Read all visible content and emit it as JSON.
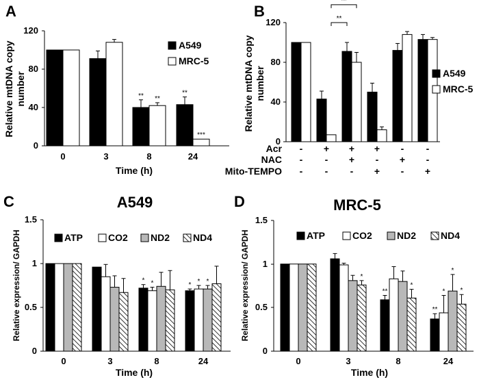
{
  "colors": {
    "black": "#000000",
    "white": "#ffffff",
    "gray": "#b8b8b8"
  },
  "icons": {
    "hatch": "diagonal-hatch-pattern"
  },
  "chart_data": [
    {
      "panel": "A",
      "type": "bar",
      "title": "",
      "xlabel": "Time (h)",
      "ylabel": "Relative mtDNA copy number",
      "ylabel_lines": [
        "Relative mtDNA copy",
        "number"
      ],
      "ylim": [
        0,
        120
      ],
      "yticks": [
        "0",
        "40",
        "80",
        "120"
      ],
      "categories": [
        "0",
        "3",
        "8",
        "24"
      ],
      "series": [
        {
          "name": "A549",
          "fill": "black",
          "values": [
            100,
            91,
            40,
            43
          ],
          "errors": [
            0,
            8,
            8,
            8
          ],
          "sig": [
            "",
            "",
            "**",
            "**"
          ]
        },
        {
          "name": "MRC-5",
          "fill": "white",
          "values": [
            100,
            108,
            42,
            7
          ],
          "errors": [
            0,
            3,
            3,
            0
          ],
          "sig": [
            "",
            "",
            "**",
            "***"
          ]
        }
      ]
    },
    {
      "panel": "B",
      "type": "bar",
      "title": "",
      "ylabel": "Relative mtDNA copy number",
      "ylabel_lines": [
        "Relative mtDNA copy",
        "number"
      ],
      "ylim": [
        0,
        120
      ],
      "yticks": [
        "0",
        "40",
        "80",
        "120"
      ],
      "categories": [
        "1",
        "2",
        "3",
        "4",
        "5",
        "6"
      ],
      "series": [
        {
          "name": "A549",
          "fill": "black",
          "values": [
            100,
            43,
            91,
            50,
            92,
            103
          ],
          "errors": [
            0,
            8,
            9,
            9,
            7,
            5
          ]
        },
        {
          "name": "MRC-5",
          "fill": "white",
          "values": [
            100,
            7,
            80,
            12,
            108,
            103
          ],
          "errors": [
            0,
            0,
            10,
            3,
            3,
            2
          ]
        }
      ],
      "brackets": [
        {
          "from_group": 1,
          "to_group": 2,
          "label": "**",
          "y": 138
        },
        {
          "from_group": 1,
          "to_group": 2,
          "label": "**",
          "y": 120
        }
      ],
      "conditions": [
        {
          "label": "Acr",
          "signs": [
            "-",
            "+",
            "+",
            "+",
            "-",
            "-"
          ]
        },
        {
          "label": "NAC",
          "signs": [
            "-",
            "-",
            "+",
            "-",
            "+",
            "-"
          ]
        },
        {
          "label": "Mito-TEMPO",
          "signs": [
            "-",
            "-",
            "-",
            "+",
            "-",
            "+"
          ]
        }
      ]
    },
    {
      "panel": "C",
      "type": "bar",
      "title": "A549",
      "xlabel": "Time (h)",
      "ylabel": "Relative expression/ GAPDH",
      "ylim": [
        0,
        1.5
      ],
      "yticks": [
        "0",
        "0.5",
        "1",
        "1.5"
      ],
      "categories": [
        "0",
        "3",
        "8",
        "24"
      ],
      "series": [
        {
          "name": "ATP",
          "fill": "black",
          "values": [
            1.0,
            0.96,
            0.72,
            0.69
          ],
          "errors": [
            0,
            0,
            0.04,
            0.02
          ],
          "sig": [
            "",
            "",
            "*",
            "*"
          ]
        },
        {
          "name": "CO2",
          "fill": "white",
          "values": [
            1.0,
            0.85,
            0.69,
            0.71
          ],
          "errors": [
            0,
            0.14,
            0.04,
            0.04
          ],
          "sig": [
            "",
            "",
            "*",
            "*"
          ]
        },
        {
          "name": "ND2",
          "fill": "gray",
          "values": [
            1.0,
            0.73,
            0.74,
            0.71
          ],
          "errors": [
            0,
            0.13,
            0.16,
            0.04
          ],
          "sig": [
            "",
            "",
            "",
            "*"
          ]
        },
        {
          "name": "ND4",
          "fill": "hatch",
          "values": [
            1.0,
            0.67,
            0.7,
            0.77
          ],
          "errors": [
            0,
            0.16,
            0.22,
            0.2
          ],
          "sig": [
            "",
            "",
            "",
            ""
          ]
        }
      ]
    },
    {
      "panel": "D",
      "type": "bar",
      "title": "MRC-5",
      "xlabel": "Time (h)",
      "ylabel": "Relative expression/ GAPDH",
      "ylim": [
        0,
        1.5
      ],
      "yticks": [
        "0",
        "0.5",
        "1",
        "1.5"
      ],
      "categories": [
        "0",
        "3",
        "8",
        "24"
      ],
      "series": [
        {
          "name": "ATP",
          "fill": "black",
          "values": [
            1.0,
            1.06,
            0.59,
            0.37
          ],
          "errors": [
            0,
            0.06,
            0.05,
            0.06
          ],
          "sig": [
            "",
            "",
            "**",
            "**"
          ]
        },
        {
          "name": "CO2",
          "fill": "white",
          "values": [
            1.0,
            0.99,
            0.83,
            0.44
          ],
          "errors": [
            0,
            0.02,
            0.14,
            0.2
          ],
          "sig": [
            "",
            "",
            "",
            "*"
          ]
        },
        {
          "name": "ND2",
          "fill": "gray",
          "values": [
            1.0,
            0.81,
            0.8,
            0.69
          ],
          "errors": [
            0,
            0.06,
            0.12,
            0.19
          ],
          "sig": [
            "",
            "",
            "",
            "*"
          ]
        },
        {
          "name": "ND4",
          "fill": "hatch",
          "values": [
            1.0,
            0.76,
            0.61,
            0.54
          ],
          "errors": [
            0,
            0.05,
            0.1,
            0.11
          ],
          "sig": [
            "",
            "*",
            "*",
            "*"
          ]
        }
      ]
    }
  ]
}
